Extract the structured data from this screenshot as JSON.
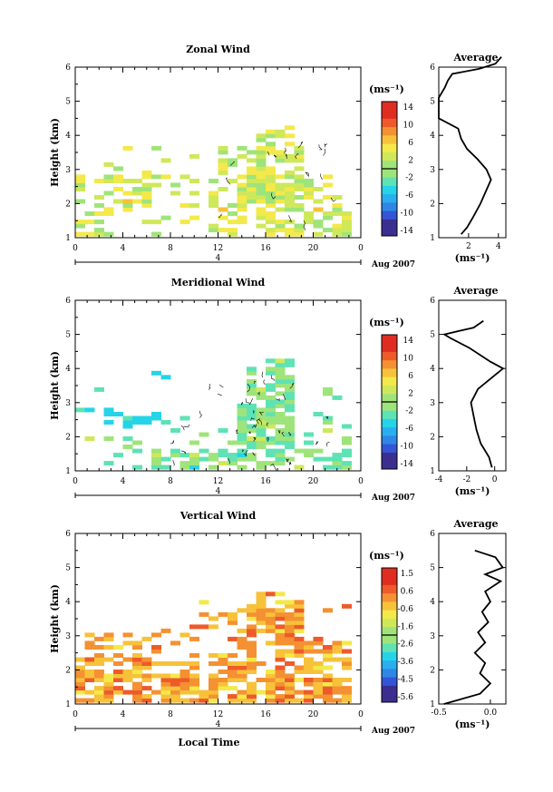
{
  "figure": {
    "date_label": "Aug 2007",
    "colorbar_unit": "(ms⁻¹)",
    "average_title": "Average",
    "average_unit": "(ms⁻¹)"
  },
  "chart_data": [
    {
      "type": "heatmap",
      "title": "Zonal Wind",
      "ylabel": "Height (km)",
      "xlabel": "",
      "day_label": "4",
      "xlim": [
        0,
        24
      ],
      "ylim": [
        1,
        6
      ],
      "x_ticks": [
        "0",
        "4",
        "8",
        "12",
        "16",
        "20",
        "0"
      ],
      "y_ticks": [
        "1",
        "2",
        "3",
        "4",
        "5",
        "6"
      ],
      "color_range": [
        -15,
        15
      ],
      "colorbar_ticks": [
        "14",
        "10",
        "6",
        "2",
        "-2",
        "-6",
        "-10",
        "-14"
      ],
      "cells_hint": "sparse 1-4 km field, mostly +0..+6 m/s",
      "average": {
        "x_ticks": [
          "2",
          "4"
        ],
        "y_ticks": [
          "1",
          "2",
          "3",
          "4",
          "5",
          "6"
        ],
        "xlim": [
          0,
          4.5
        ],
        "height": [
          1.1,
          1.3,
          1.6,
          2.0,
          2.4,
          2.7,
          3.0,
          3.3,
          3.6,
          3.9,
          4.2,
          4.5,
          4.8,
          5.1,
          5.4,
          5.6,
          5.8,
          5.95,
          6.1,
          6.3
        ],
        "value": [
          1.5,
          1.9,
          2.3,
          2.8,
          3.2,
          3.5,
          3.2,
          2.6,
          1.9,
          1.5,
          1.3,
          0.0,
          0.0,
          0.0,
          0.4,
          0.6,
          0.9,
          2.7,
          3.8,
          4.2
        ]
      }
    },
    {
      "type": "heatmap",
      "title": "Meridional Wind",
      "ylabel": "Height (km)",
      "xlabel": "",
      "day_label": "4",
      "xlim": [
        0,
        24
      ],
      "ylim": [
        1,
        6
      ],
      "x_ticks": [
        "0",
        "4",
        "8",
        "12",
        "16",
        "20",
        "0"
      ],
      "y_ticks": [
        "1",
        "2",
        "3",
        "4",
        "5",
        "6"
      ],
      "color_range": [
        -15,
        15
      ],
      "colorbar_ticks": [
        "14",
        "10",
        "6",
        "2",
        "-2",
        "-6",
        "-10",
        "-14"
      ],
      "cells_hint": "mostly -4..+2 m/s",
      "average": {
        "x_ticks": [
          "-4",
          "-2",
          "0"
        ],
        "y_ticks": [
          "1",
          "2",
          "3",
          "4",
          "5",
          "6"
        ],
        "xlim": [
          -4,
          0.8
        ],
        "height": [
          1.1,
          1.4,
          1.8,
          2.2,
          2.6,
          3.0,
          3.4,
          3.8,
          4.0,
          4.2,
          4.6,
          4.9,
          5.0,
          5.2,
          5.4
        ],
        "value": [
          -0.2,
          -0.4,
          -1.0,
          -1.3,
          -1.5,
          -1.7,
          -1.2,
          0.0,
          0.6,
          -0.3,
          -1.8,
          -3.2,
          -3.6,
          -1.5,
          -0.8
        ]
      }
    },
    {
      "type": "heatmap",
      "title": "Vertical Wind",
      "ylabel": "Height (km)",
      "xlabel": "Local Time",
      "day_label": "4",
      "xlim": [
        0,
        24
      ],
      "ylim": [
        1,
        6
      ],
      "x_ticks": [
        "0",
        "4",
        "8",
        "12",
        "16",
        "20",
        "0"
      ],
      "y_ticks": [
        "1",
        "2",
        "3",
        "4",
        "5",
        "6"
      ],
      "color_range": [
        -6,
        2
      ],
      "colorbar_ticks": [
        "1.5",
        "0.6",
        "-0.6",
        "-1.6",
        "-2.6",
        "-3.6",
        "-4.5",
        "-5.6"
      ],
      "cells_hint": "mostly -0.6..+1.0 m/s",
      "average": {
        "x_ticks": [
          "-0.5",
          "0.0"
        ],
        "y_ticks": [
          "1",
          "2",
          "3",
          "4",
          "5",
          "6"
        ],
        "xlim": [
          -0.5,
          0.15
        ],
        "height": [
          1.0,
          1.3,
          1.6,
          1.9,
          2.2,
          2.5,
          2.8,
          3.1,
          3.4,
          3.7,
          4.0,
          4.3,
          4.6,
          4.8,
          5.0,
          5.3,
          5.5
        ],
        "value": [
          -0.45,
          -0.1,
          0.0,
          -0.1,
          -0.05,
          -0.15,
          -0.05,
          -0.12,
          -0.02,
          -0.08,
          0.0,
          -0.05,
          0.1,
          -0.05,
          0.12,
          0.05,
          -0.15
        ]
      }
    }
  ]
}
